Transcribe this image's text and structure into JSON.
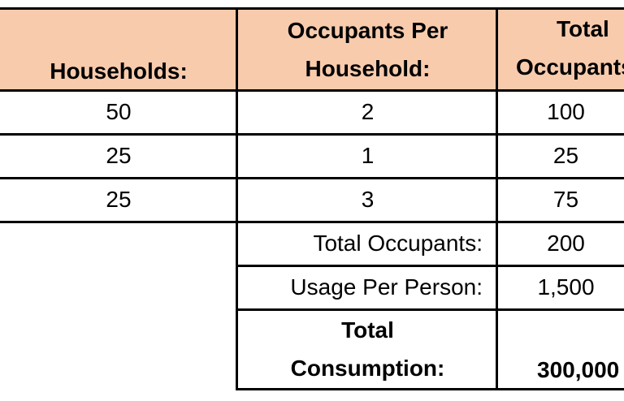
{
  "headers": {
    "households": "Households:",
    "occupants_per_household_line1": "Occupants Per",
    "occupants_per_household_line2": "Household:",
    "total_occupants_line1": "Total",
    "total_occupants_line2": "Occupants"
  },
  "rows": [
    {
      "households": "50",
      "occupants_per_household": "2",
      "total_occupants": "100"
    },
    {
      "households": "25",
      "occupants_per_household": "1",
      "total_occupants": "25"
    },
    {
      "households": "25",
      "occupants_per_household": "3",
      "total_occupants": "75"
    }
  ],
  "summary": {
    "total_occupants_label": "Total Occupants:",
    "total_occupants_value": "200",
    "usage_per_person_label": "Usage Per Person:",
    "usage_per_person_value": "1,500",
    "total_consumption_label_line1": "Total",
    "total_consumption_label_line2": "Consumption:",
    "total_consumption_value": "300,000"
  },
  "colors": {
    "header_fill": "#f8cbad",
    "border": "#000000"
  }
}
